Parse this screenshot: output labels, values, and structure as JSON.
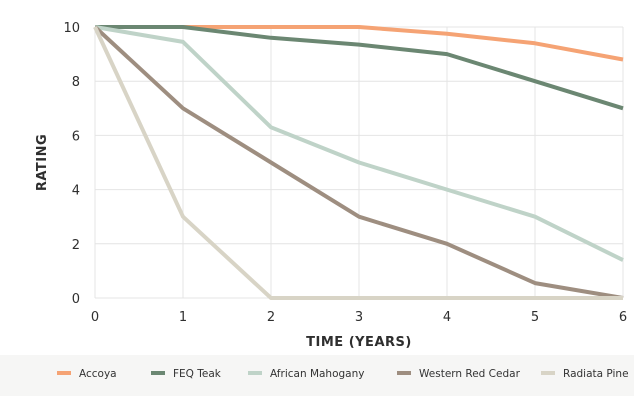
{
  "chart_data": {
    "type": "line",
    "title": "",
    "xlabel": "TIME (YEARS)",
    "ylabel": "RATING",
    "xlim": [
      0,
      6
    ],
    "ylim": [
      0,
      10
    ],
    "x_ticks": [
      0,
      1,
      2,
      3,
      4,
      5,
      6
    ],
    "y_ticks": [
      0,
      2,
      4,
      6,
      8,
      10
    ],
    "grid": true,
    "legend_position": "bottom",
    "x": [
      0,
      1,
      2,
      3,
      4,
      5,
      6
    ],
    "series": [
      {
        "name": "Accoya",
        "color": "#f5a374",
        "values": [
          10,
          10,
          10,
          10,
          9.75,
          9.4,
          8.8
        ]
      },
      {
        "name": "FEQ Teak",
        "color": "#6b8772",
        "values": [
          10,
          10,
          9.6,
          9.35,
          9.0,
          8.0,
          7.0
        ]
      },
      {
        "name": "African Mahogany",
        "color": "#bfd3c8",
        "values": [
          10,
          9.45,
          6.3,
          5.0,
          4.0,
          3.0,
          1.4
        ]
      },
      {
        "name": "Western Red Cedar",
        "color": "#9e8e80",
        "values": [
          10,
          7.0,
          5.0,
          3.0,
          2.0,
          0.55,
          0.0
        ]
      },
      {
        "name": "Radiata Pine",
        "color": "#d8d4c6",
        "values": [
          10,
          3.0,
          0.0,
          0.0,
          0.0,
          0.0,
          0.0
        ]
      }
    ]
  }
}
